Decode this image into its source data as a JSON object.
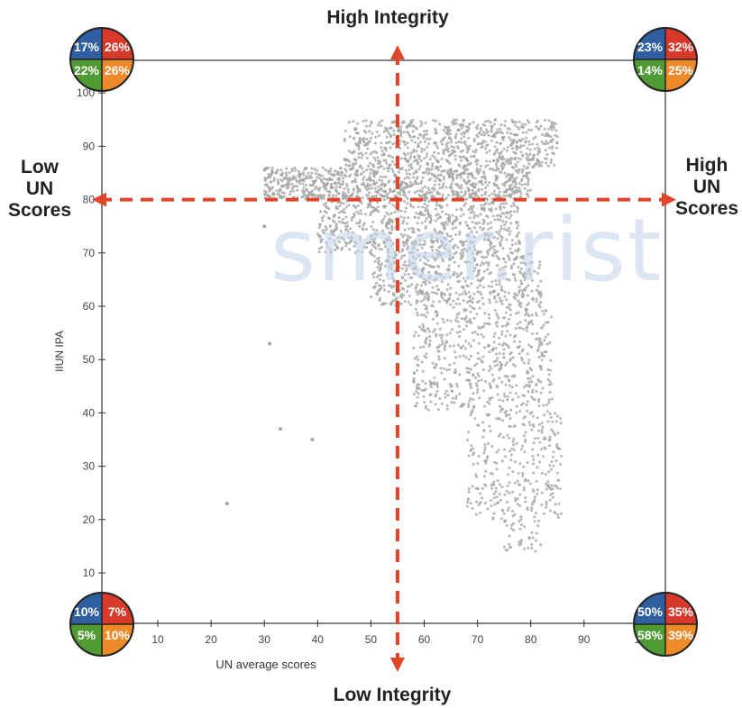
{
  "quadrant_labels": {
    "top": "High Integrity",
    "bottom": "Low Integrity",
    "left": [
      "Low",
      "UN",
      "Scores"
    ],
    "right": [
      "High",
      "UN",
      "Scores"
    ]
  },
  "watermark": "smer.rist",
  "corner_badges": [
    {
      "id": "top-left",
      "values": [
        "17%",
        "26%",
        "22%",
        "26%"
      ]
    },
    {
      "id": "top-right",
      "values": [
        "23%",
        "32%",
        "14%",
        "25%"
      ]
    },
    {
      "id": "bottom-left",
      "values": [
        "10%",
        "7%",
        "5%",
        "10%"
      ]
    },
    {
      "id": "bottom-right",
      "values": [
        "50%",
        "35%",
        "58%",
        "39%"
      ]
    }
  ],
  "colors": {
    "badge_blue": "#2f5fa0",
    "badge_red": "#d8392b",
    "badge_green": "#4f9a32",
    "badge_orange": "#ee8a28",
    "arrow": "#e0452c",
    "points": "#a1a6a2"
  },
  "chart_data": {
    "type": "scatter",
    "xlabel": "UN average scores",
    "ylabel": "IIUN IPA",
    "xlim": [
      0,
      100
    ],
    "ylim": [
      5,
      100
    ],
    "x_ticks": [
      "10",
      "20",
      "30",
      "40",
      "50",
      "60",
      "70",
      "80",
      "90",
      "1"
    ],
    "y_ticks": [
      "10",
      "20",
      "30",
      "40",
      "50",
      "60",
      "70",
      "80",
      "90",
      "100"
    ],
    "grid": false,
    "quadrant_divider": {
      "x": 55,
      "y": 80
    },
    "point_density": [
      {
        "y_range": [
          80,
          86
        ],
        "x_range": [
          30,
          80
        ]
      },
      {
        "y_range": [
          86,
          95
        ],
        "x_range": [
          45,
          85
        ]
      },
      {
        "y_range": [
          70,
          80
        ],
        "x_range": [
          40,
          78
        ]
      },
      {
        "y_range": [
          60,
          70
        ],
        "x_range": [
          50,
          82
        ]
      },
      {
        "y_range": [
          40,
          60
        ],
        "x_range": [
          58,
          84
        ]
      },
      {
        "y_range": [
          20,
          40
        ],
        "x_range": [
          68,
          86
        ]
      },
      {
        "y_range": [
          14,
          20
        ],
        "x_range": [
          75,
          82
        ]
      }
    ],
    "outliers": [
      [
        31,
        53
      ],
      [
        33,
        37
      ],
      [
        23,
        23
      ],
      [
        39,
        35
      ],
      [
        30,
        75
      ]
    ]
  }
}
